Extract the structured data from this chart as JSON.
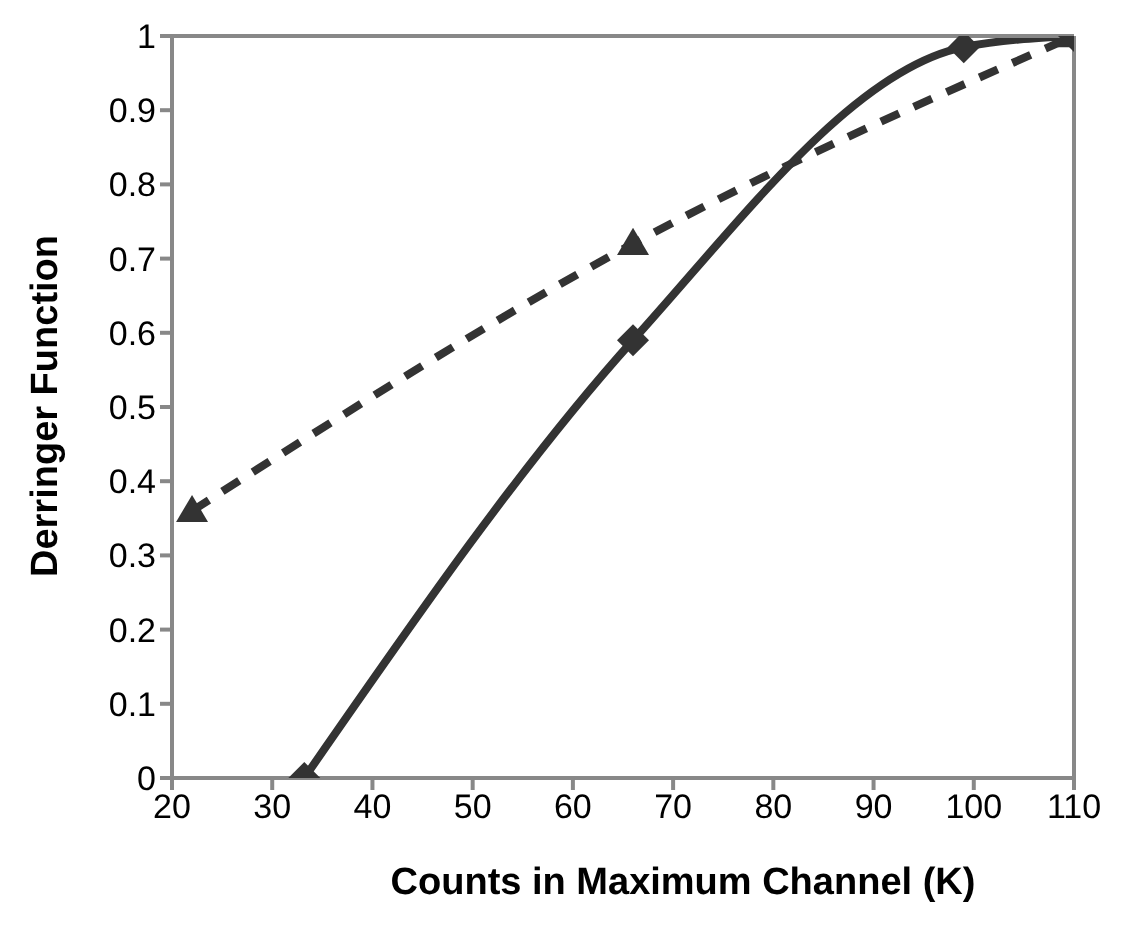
{
  "chart_data": {
    "type": "line",
    "xlabel": "Counts in Maximum Channel (K)",
    "ylabel": "Derringer Function",
    "series": [
      {
        "color": "#333333",
        "x": [
          33.2,
          66,
          99,
          110
        ],
        "values": [
          0,
          0.59,
          0.985,
          1
        ],
        "marker": "diamond",
        "line_style": "solid"
      },
      {
        "color": "#333333",
        "x": [
          22,
          66,
          110
        ],
        "values": [
          0.36,
          0.72,
          1
        ],
        "marker": "triangle",
        "line_style": "dashed"
      }
    ],
    "xlim": [
      20,
      110
    ],
    "xticks": [
      20,
      30,
      40,
      50,
      60,
      70,
      80,
      90,
      100,
      110
    ],
    "ylim": [
      0,
      1
    ],
    "yticks": [
      0,
      0.1,
      0.2,
      0.3,
      0.4,
      0.5,
      0.6,
      0.7,
      0.8,
      0.9,
      1
    ]
  }
}
